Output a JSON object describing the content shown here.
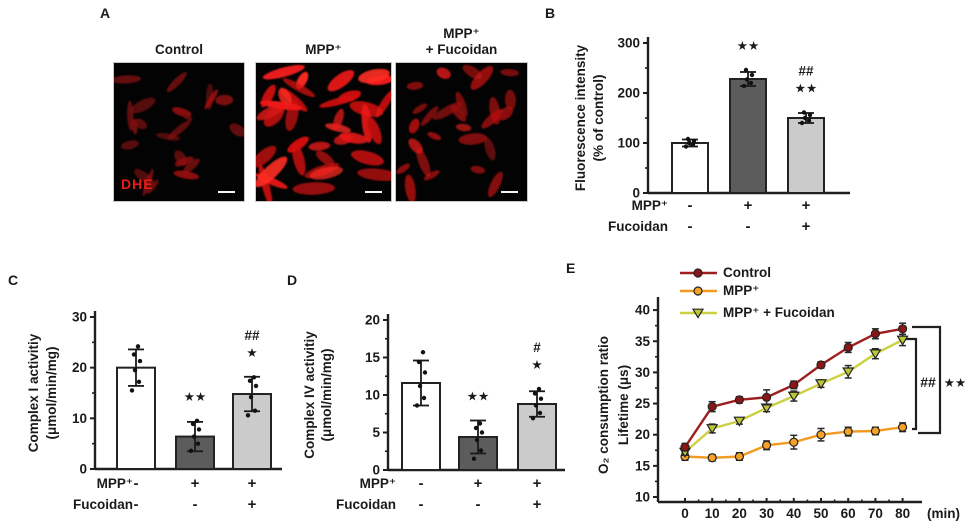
{
  "panels": {
    "A": {
      "label": "A",
      "stain_label": "DHE",
      "images": [
        {
          "title_lines": [
            "Control"
          ]
        },
        {
          "title_lines": [
            "MPP⁺"
          ]
        },
        {
          "title_lines": [
            "MPP⁺",
            "+ Fucoidan"
          ]
        }
      ]
    },
    "B": {
      "label": "B"
    },
    "C": {
      "label": "C"
    },
    "D": {
      "label": "D"
    },
    "E": {
      "label": "E"
    }
  },
  "colors": {
    "bar_white": "#ffffff",
    "bar_dark_gray": "#5c5c5c",
    "bar_light_gray": "#cbcbcb",
    "axis": "#1f1f1f",
    "control_line": "#9e1f1f",
    "mpp_line": "#f19b22",
    "fucoidan_line": "#ccd043",
    "dhe_red": "#ea1c17"
  },
  "chart_data": [
    {
      "id": "B",
      "type": "bar",
      "ylabel_lines": [
        "Fluorescence intensity",
        "(% of control)"
      ],
      "ylim": [
        0,
        300
      ],
      "yticks": [
        0,
        100,
        200,
        300
      ],
      "condition_rows": [
        {
          "label": "MPP⁺",
          "signs": [
            "-",
            "+",
            "+"
          ]
        },
        {
          "label": "Fucoidan",
          "signs": [
            "-",
            "-",
            "+"
          ]
        }
      ],
      "bars": [
        {
          "value": 100,
          "error": 7,
          "fill": "#ffffff",
          "sig": [],
          "points": [
            93,
            97,
            100,
            104,
            108
          ]
        },
        {
          "value": 228,
          "error": 14,
          "fill": "#5c5c5c",
          "sig": [
            "**"
          ],
          "points": [
            214,
            220,
            227,
            236,
            246
          ]
        },
        {
          "value": 150,
          "error": 10,
          "fill": "#cbcbcb",
          "sig": [
            "##",
            "**"
          ],
          "points": [
            140,
            145,
            150,
            156,
            161
          ]
        }
      ]
    },
    {
      "id": "C",
      "type": "bar",
      "ylabel_lines": [
        "Complex I activitiy",
        "(μmol/min/mg)"
      ],
      "ylim": [
        0,
        30
      ],
      "yticks": [
        0,
        10,
        20,
        30
      ],
      "condition_rows": [
        {
          "label": "MPP⁺",
          "signs": [
            "-",
            "+",
            "+"
          ]
        },
        {
          "label": "Fucoidan",
          "signs": [
            "-",
            "-",
            "+"
          ]
        }
      ],
      "bars": [
        {
          "value": 20,
          "error": 3.6,
          "fill": "#ffffff",
          "sig": [],
          "points": [
            15.5,
            17.2,
            19.5,
            21.3,
            22.6,
            24.2
          ]
        },
        {
          "value": 6.4,
          "error": 2.9,
          "fill": "#5c5c5c",
          "sig": [
            "**"
          ],
          "points": [
            3.6,
            5.0,
            6.4,
            7.8,
            8.9,
            9.5
          ]
        },
        {
          "value": 14.8,
          "error": 3.4,
          "fill": "#cbcbcb",
          "sig": [
            "##",
            "*"
          ],
          "points": [
            10.6,
            11.5,
            14.2,
            16.4,
            17.4,
            18.1
          ]
        }
      ]
    },
    {
      "id": "D",
      "type": "bar",
      "ylabel_lines": [
        "Complex IV activitiy",
        "(μmol/min/mg)"
      ],
      "ylim": [
        0,
        20
      ],
      "yticks": [
        0,
        5,
        10,
        15,
        20
      ],
      "condition_rows": [
        {
          "label": "MPP⁺",
          "signs": [
            "-",
            "+",
            "+"
          ]
        },
        {
          "label": "Fucoidan",
          "signs": [
            "-",
            "-",
            "+"
          ]
        }
      ],
      "bars": [
        {
          "value": 11.6,
          "error": 3.0,
          "fill": "#ffffff",
          "sig": [],
          "points": [
            8.6,
            9.6,
            11.2,
            13.0,
            14.4,
            15.7
          ]
        },
        {
          "value": 4.4,
          "error": 2.2,
          "fill": "#5c5c5c",
          "sig": [
            "**"
          ],
          "points": [
            1.5,
            2.6,
            4.0,
            5.0,
            5.6,
            6.2
          ]
        },
        {
          "value": 8.8,
          "error": 1.7,
          "fill": "#cbcbcb",
          "sig": [
            "#",
            "*"
          ],
          "points": [
            6.9,
            7.6,
            8.6,
            9.5,
            10.2,
            10.8
          ]
        }
      ]
    },
    {
      "id": "E",
      "type": "line",
      "ylabel_lines": [
        "O₂ consumption ratio",
        "Lifetime (μs)"
      ],
      "xlabel": "(min)",
      "x": [
        0,
        10,
        20,
        30,
        40,
        50,
        60,
        70,
        80
      ],
      "ylim": [
        10,
        40
      ],
      "yticks": [
        10,
        15,
        20,
        25,
        30,
        35,
        40
      ],
      "legend_position": "top",
      "series": [
        {
          "name": "Control",
          "color": "#9e1f1f",
          "marker": "circle",
          "marker_fill": "#8c1616",
          "values": [
            18.0,
            24.5,
            25.6,
            26.0,
            28.0,
            31.2,
            34.0,
            36.2,
            37.0
          ],
          "errors": [
            0.6,
            0.8,
            0.5,
            1.2,
            0.6,
            0.5,
            0.8,
            0.8,
            0.9
          ]
        },
        {
          "name": "MPP⁺",
          "color": "#f19b22",
          "marker": "circle",
          "marker_fill": "#f5a226",
          "values": [
            16.5,
            16.3,
            16.5,
            18.3,
            18.8,
            20.0,
            20.5,
            20.6,
            21.2
          ],
          "errors": [
            0.6,
            0.5,
            0.6,
            0.7,
            1.1,
            1.0,
            0.7,
            0.6,
            0.7
          ]
        },
        {
          "name": "MPP⁺ + Fucoidan",
          "color": "#ccd043",
          "marker": "triangle-down",
          "marker_fill": "#bcc838",
          "values": [
            17.2,
            21.0,
            22.2,
            24.3,
            26.2,
            28.2,
            30.1,
            33.0,
            35.2
          ],
          "errors": [
            0.5,
            0.7,
            0.5,
            0.6,
            0.8,
            0.6,
            1.0,
            0.8,
            0.9
          ]
        }
      ],
      "brackets": [
        {
          "label": "##"
        },
        {
          "label": "**"
        }
      ]
    }
  ]
}
